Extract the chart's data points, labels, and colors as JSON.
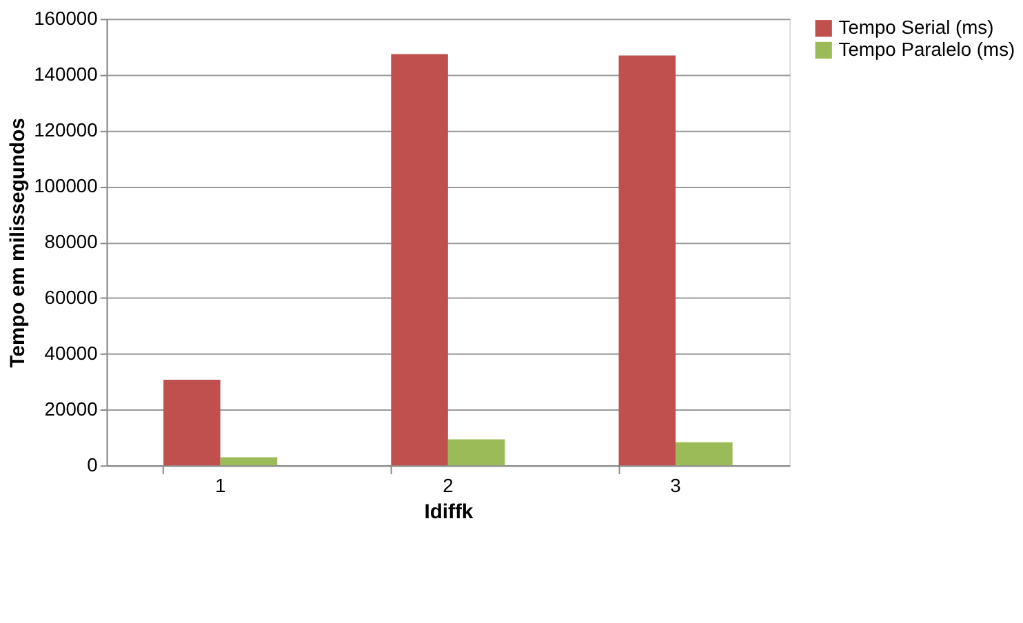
{
  "chart_data": {
    "type": "bar",
    "xlabel": "Idiffk",
    "ylabel": "Tempo em milissegundos",
    "categories": [
      "1",
      "2",
      "3"
    ],
    "series": [
      {
        "name": "Tempo Serial (ms)",
        "color": "#c0504d",
        "values": [
          30700,
          147400,
          146900
        ]
      },
      {
        "name": "Tempo Paralelo (ms)",
        "color": "#9bbb59",
        "values": [
          2900,
          9300,
          8300
        ]
      }
    ],
    "ylim": [
      0,
      160000
    ],
    "yticks": [
      0,
      20000,
      40000,
      60000,
      80000,
      100000,
      120000,
      140000,
      160000
    ],
    "grid": "y",
    "legend": "right"
  }
}
